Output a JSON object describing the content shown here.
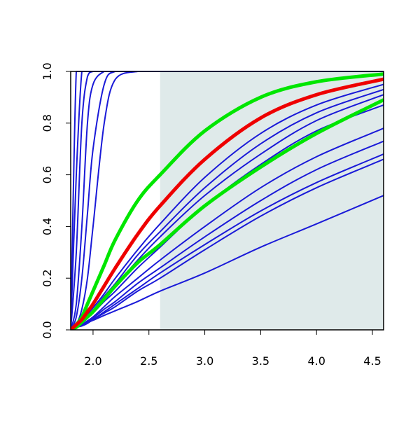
{
  "chart_data": {
    "type": "line",
    "x": [
      1.8,
      1.85,
      1.9,
      1.95,
      2.0,
      2.1,
      2.2,
      2.4,
      2.6,
      3.0,
      3.5,
      4.0,
      4.6
    ],
    "xlim": [
      1.8,
      4.6
    ],
    "ylim": [
      0,
      1
    ],
    "xticks": [
      {
        "value": 2.0,
        "label": "2.0"
      },
      {
        "value": 2.5,
        "label": "2.5"
      },
      {
        "value": 3.0,
        "label": "3.0"
      },
      {
        "value": 3.5,
        "label": "3.5"
      },
      {
        "value": 4.0,
        "label": "4.0"
      },
      {
        "value": 4.5,
        "label": "4.5"
      }
    ],
    "yticks": [
      {
        "value": 0,
        "label": "0.0"
      },
      {
        "value": 0.2,
        "label": "0.2"
      },
      {
        "value": 0.4,
        "label": "0.4"
      },
      {
        "value": 0.6,
        "label": "0.6"
      },
      {
        "value": 0.8,
        "label": "0.8"
      },
      {
        "value": 1,
        "label": "1.0"
      }
    ],
    "shade": {
      "xmin": 2.6,
      "xmax": 4.6,
      "color": "#dfeaea"
    },
    "series": [
      {
        "color": "#1a1ad8",
        "values": [
          0,
          1,
          1,
          1,
          1,
          1,
          1,
          1,
          1,
          1,
          1,
          1,
          1
        ]
      },
      {
        "color": "#1a1ad8",
        "values": [
          0,
          0.6,
          1,
          1,
          1,
          1,
          1,
          1,
          1,
          1,
          1,
          1,
          1
        ]
      },
      {
        "color": "#1a1ad8",
        "values": [
          0,
          0.3,
          0.8,
          0.98,
          1,
          1,
          1,
          1,
          1,
          1,
          1,
          1,
          1
        ]
      },
      {
        "color": "#1a1ad8",
        "values": [
          0,
          0.1,
          0.4,
          0.8,
          0.95,
          1,
          1,
          1,
          1,
          1,
          1,
          1,
          1
        ]
      },
      {
        "color": "#1a1ad8",
        "values": [
          0,
          0.05,
          0.2,
          0.45,
          0.7,
          0.95,
          1,
          1,
          1,
          1,
          1,
          1,
          1
        ]
      },
      {
        "color": "#1a1ad8",
        "values": [
          0,
          0.02,
          0.08,
          0.2,
          0.4,
          0.8,
          0.97,
          1,
          1,
          1,
          1,
          1,
          1
        ]
      },
      {
        "color": "#1a1ad8",
        "values": [
          0,
          0.015,
          0.035,
          0.06,
          0.085,
          0.14,
          0.2,
          0.31,
          0.41,
          0.59,
          0.76,
          0.87,
          0.95
        ]
      },
      {
        "color": "#1a1ad8",
        "values": [
          0,
          0.015,
          0.03,
          0.05,
          0.075,
          0.13,
          0.18,
          0.29,
          0.38,
          0.55,
          0.72,
          0.84,
          0.93
        ]
      },
      {
        "color": "#1a1ad8",
        "values": [
          0,
          0.01,
          0.03,
          0.05,
          0.07,
          0.12,
          0.17,
          0.27,
          0.36,
          0.52,
          0.68,
          0.81,
          0.91
        ]
      },
      {
        "color": "#1a1ad8",
        "values": [
          0,
          0.01,
          0.025,
          0.045,
          0.065,
          0.11,
          0.15,
          0.24,
          0.32,
          0.48,
          0.64,
          0.77,
          0.87
        ]
      },
      {
        "color": "#1a1ad8",
        "values": [
          0,
          0.01,
          0.02,
          0.035,
          0.05,
          0.09,
          0.13,
          0.2,
          0.27,
          0.4,
          0.55,
          0.67,
          0.78
        ]
      },
      {
        "color": "#1a1ad8",
        "values": [
          0,
          0.01,
          0.02,
          0.03,
          0.045,
          0.08,
          0.11,
          0.18,
          0.24,
          0.36,
          0.5,
          0.62,
          0.73
        ]
      },
      {
        "color": "#1a1ad8",
        "values": [
          0,
          0.01,
          0.02,
          0.03,
          0.04,
          0.07,
          0.1,
          0.16,
          0.22,
          0.33,
          0.46,
          0.57,
          0.68
        ]
      },
      {
        "color": "#1a1ad8",
        "values": [
          0,
          0.01,
          0.015,
          0.025,
          0.04,
          0.065,
          0.09,
          0.15,
          0.2,
          0.31,
          0.44,
          0.55,
          0.66
        ]
      },
      {
        "color": "#1a1ad8",
        "values": [
          0,
          0.009,
          0.019,
          0.028,
          0.037,
          0.056,
          0.074,
          0.11,
          0.15,
          0.22,
          0.32,
          0.41,
          0.52
        ]
      },
      {
        "color": "#00e600",
        "emphasis": true,
        "values": [
          0,
          0.01,
          0.03,
          0.05,
          0.07,
          0.12,
          0.17,
          0.26,
          0.33,
          0.48,
          0.63,
          0.76,
          0.89
        ]
      },
      {
        "color": "#00e600",
        "emphasis": true,
        "values": [
          0,
          0.02,
          0.05,
          0.1,
          0.15,
          0.25,
          0.35,
          0.5,
          0.6,
          0.77,
          0.9,
          0.96,
          0.99
        ]
      },
      {
        "color": "#ee0000",
        "emphasis": true,
        "values": [
          0,
          0.02,
          0.04,
          0.07,
          0.1,
          0.17,
          0.24,
          0.37,
          0.48,
          0.66,
          0.82,
          0.91,
          0.97
        ]
      }
    ]
  }
}
